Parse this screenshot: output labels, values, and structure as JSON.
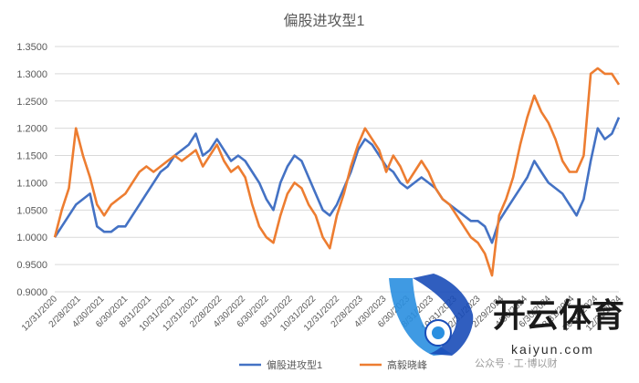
{
  "chart_data": {
    "type": "line",
    "title": "偏股进攻型1",
    "xlabel": "",
    "ylabel": "",
    "ylim": [
      0.9,
      1.35
    ],
    "y_ticks": [
      "0.9000",
      "0.9500",
      "1.0000",
      "1.0500",
      "1.1000",
      "1.1500",
      "1.2000",
      "1.2500",
      "1.3000",
      "1.3500"
    ],
    "x_tick_labels": [
      "12/31/2020",
      "2/28/2021",
      "4/30/2021",
      "6/30/2021",
      "8/31/2021",
      "10/31/2021",
      "12/31/2021",
      "2/28/2022",
      "4/30/2022",
      "6/30/2022",
      "8/31/2022",
      "10/31/2022",
      "12/31/2022",
      "2/28/2023",
      "4/30/2023",
      "6/30/2023",
      "8/31/2023",
      "10/31/2023",
      "12/31/2023",
      "2/29/2024",
      "4/30/2024",
      "6/30/2024",
      "8/31/2024",
      "10/31/2024",
      "12/31/2024"
    ],
    "grid": true,
    "legend": "bottom",
    "series": [
      {
        "name": "偏股进攻型1",
        "color": "#4472c4",
        "points": [
          [
            0,
            1.0
          ],
          [
            0.3,
            1.02
          ],
          [
            0.6,
            1.04
          ],
          [
            0.9,
            1.06
          ],
          [
            1.2,
            1.07
          ],
          [
            1.5,
            1.08
          ],
          [
            1.8,
            1.02
          ],
          [
            2.1,
            1.01
          ],
          [
            2.4,
            1.01
          ],
          [
            2.7,
            1.02
          ],
          [
            3.0,
            1.02
          ],
          [
            3.3,
            1.04
          ],
          [
            3.6,
            1.06
          ],
          [
            3.9,
            1.08
          ],
          [
            4.2,
            1.1
          ],
          [
            4.5,
            1.12
          ],
          [
            4.8,
            1.13
          ],
          [
            5.1,
            1.15
          ],
          [
            5.4,
            1.16
          ],
          [
            5.7,
            1.17
          ],
          [
            6.0,
            1.19
          ],
          [
            6.3,
            1.15
          ],
          [
            6.6,
            1.16
          ],
          [
            6.9,
            1.18
          ],
          [
            7.2,
            1.16
          ],
          [
            7.5,
            1.14
          ],
          [
            7.8,
            1.15
          ],
          [
            8.1,
            1.14
          ],
          [
            8.4,
            1.12
          ],
          [
            8.7,
            1.1
          ],
          [
            9.0,
            1.07
          ],
          [
            9.3,
            1.05
          ],
          [
            9.6,
            1.1
          ],
          [
            9.9,
            1.13
          ],
          [
            10.2,
            1.15
          ],
          [
            10.5,
            1.14
          ],
          [
            10.8,
            1.11
          ],
          [
            11.1,
            1.08
          ],
          [
            11.4,
            1.05
          ],
          [
            11.7,
            1.04
          ],
          [
            12.0,
            1.06
          ],
          [
            12.3,
            1.09
          ],
          [
            12.6,
            1.12
          ],
          [
            12.9,
            1.16
          ],
          [
            13.2,
            1.18
          ],
          [
            13.5,
            1.17
          ],
          [
            13.8,
            1.15
          ],
          [
            14.1,
            1.13
          ],
          [
            14.4,
            1.12
          ],
          [
            14.7,
            1.1
          ],
          [
            15.0,
            1.09
          ],
          [
            15.3,
            1.1
          ],
          [
            15.6,
            1.11
          ],
          [
            15.9,
            1.1
          ],
          [
            16.2,
            1.09
          ],
          [
            16.5,
            1.07
          ],
          [
            16.8,
            1.06
          ],
          [
            17.1,
            1.05
          ],
          [
            17.4,
            1.04
          ],
          [
            17.7,
            1.03
          ],
          [
            18.0,
            1.03
          ],
          [
            18.3,
            1.02
          ],
          [
            18.6,
            0.99
          ],
          [
            18.9,
            1.03
          ],
          [
            19.2,
            1.05
          ],
          [
            19.5,
            1.07
          ],
          [
            19.8,
            1.09
          ],
          [
            20.1,
            1.11
          ],
          [
            20.4,
            1.14
          ],
          [
            20.7,
            1.12
          ],
          [
            21.0,
            1.1
          ],
          [
            21.3,
            1.09
          ],
          [
            21.6,
            1.08
          ],
          [
            21.9,
            1.06
          ],
          [
            22.2,
            1.04
          ],
          [
            22.5,
            1.07
          ],
          [
            22.8,
            1.14
          ],
          [
            23.1,
            1.2
          ],
          [
            23.4,
            1.18
          ],
          [
            23.7,
            1.19
          ],
          [
            24.0,
            1.22
          ]
        ]
      },
      {
        "name": "高毅晓峰",
        "color": "#ed7d31",
        "points": [
          [
            0,
            1.0
          ],
          [
            0.3,
            1.05
          ],
          [
            0.6,
            1.09
          ],
          [
            0.9,
            1.2
          ],
          [
            1.2,
            1.15
          ],
          [
            1.5,
            1.11
          ],
          [
            1.8,
            1.06
          ],
          [
            2.1,
            1.04
          ],
          [
            2.4,
            1.06
          ],
          [
            2.7,
            1.07
          ],
          [
            3.0,
            1.08
          ],
          [
            3.3,
            1.1
          ],
          [
            3.6,
            1.12
          ],
          [
            3.9,
            1.13
          ],
          [
            4.2,
            1.12
          ],
          [
            4.5,
            1.13
          ],
          [
            4.8,
            1.14
          ],
          [
            5.1,
            1.15
          ],
          [
            5.4,
            1.14
          ],
          [
            5.7,
            1.15
          ],
          [
            6.0,
            1.16
          ],
          [
            6.3,
            1.13
          ],
          [
            6.6,
            1.15
          ],
          [
            6.9,
            1.17
          ],
          [
            7.2,
            1.14
          ],
          [
            7.5,
            1.12
          ],
          [
            7.8,
            1.13
          ],
          [
            8.1,
            1.11
          ],
          [
            8.4,
            1.06
          ],
          [
            8.7,
            1.02
          ],
          [
            9.0,
            1.0
          ],
          [
            9.3,
            0.99
          ],
          [
            9.6,
            1.04
          ],
          [
            9.9,
            1.08
          ],
          [
            10.2,
            1.1
          ],
          [
            10.5,
            1.09
          ],
          [
            10.8,
            1.06
          ],
          [
            11.1,
            1.04
          ],
          [
            11.4,
            1.0
          ],
          [
            11.7,
            0.98
          ],
          [
            12.0,
            1.04
          ],
          [
            12.3,
            1.08
          ],
          [
            12.6,
            1.13
          ],
          [
            12.9,
            1.17
          ],
          [
            13.2,
            1.2
          ],
          [
            13.5,
            1.18
          ],
          [
            13.8,
            1.16
          ],
          [
            14.1,
            1.12
          ],
          [
            14.4,
            1.15
          ],
          [
            14.7,
            1.13
          ],
          [
            15.0,
            1.1
          ],
          [
            15.3,
            1.12
          ],
          [
            15.6,
            1.14
          ],
          [
            15.9,
            1.12
          ],
          [
            16.2,
            1.09
          ],
          [
            16.5,
            1.07
          ],
          [
            16.8,
            1.06
          ],
          [
            17.1,
            1.04
          ],
          [
            17.4,
            1.02
          ],
          [
            17.7,
            1.0
          ],
          [
            18.0,
            0.99
          ],
          [
            18.3,
            0.97
          ],
          [
            18.6,
            0.93
          ],
          [
            18.9,
            1.04
          ],
          [
            19.2,
            1.07
          ],
          [
            19.5,
            1.11
          ],
          [
            19.8,
            1.17
          ],
          [
            20.1,
            1.22
          ],
          [
            20.4,
            1.26
          ],
          [
            20.7,
            1.23
          ],
          [
            21.0,
            1.21
          ],
          [
            21.3,
            1.18
          ],
          [
            21.6,
            1.14
          ],
          [
            21.9,
            1.12
          ],
          [
            22.2,
            1.12
          ],
          [
            22.5,
            1.15
          ],
          [
            22.8,
            1.3
          ],
          [
            23.1,
            1.31
          ],
          [
            23.4,
            1.3
          ],
          [
            23.7,
            1.3
          ],
          [
            24.0,
            1.28
          ]
        ]
      }
    ]
  },
  "watermark": {
    "brand_cn": "开云体育",
    "brand_en": "kaiyun.com",
    "caption": "公众号 · 工·博以财"
  }
}
